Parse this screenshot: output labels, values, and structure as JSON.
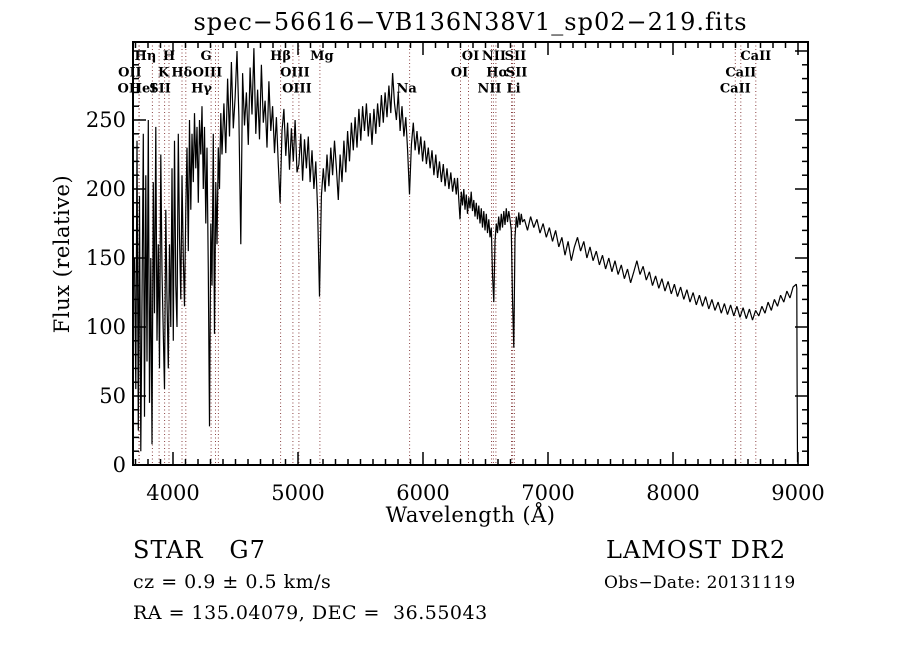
{
  "title": "spec−56616−VB136N38V1_sp02−219.fits",
  "axes": {
    "xlabel": "Wavelength (Å)",
    "ylabel": "Flux (relative)"
  },
  "footer": {
    "class_line": "STAR   G7",
    "cz_line": "cz = 0.9 ± 0.5 km/s",
    "radec_line": "RA = 135.04079, DEC =  36.55043",
    "survey": "LAMOST DR2",
    "obsdate": "Obs−Date: 20131119"
  },
  "colors": {
    "curve": "#000000",
    "frame": "#000000",
    "marker_line": "#8b4343"
  },
  "chart_data": {
    "type": "line",
    "title": "spec−56616−VB136N38V1_sp02−219.fits",
    "xlabel": "Wavelength (Å)",
    "ylabel": "Flux (relative)",
    "xlim": [
      3680,
      9080
    ],
    "ylim": [
      0,
      306.5
    ],
    "x_major_ticks": [
      4000,
      5000,
      6000,
      7000,
      8000,
      9000
    ],
    "y_major_ticks": [
      0,
      50,
      100,
      150,
      200,
      250,
      300
    ],
    "y_labeled_ticks": [
      0,
      50,
      100,
      150,
      200,
      250
    ],
    "x_minor_step": 100,
    "y_minor_step": 10,
    "grid": false,
    "legend": "none",
    "spectral_lines": [
      {
        "label": "OII",
        "wl": 3727,
        "row": 2,
        "dx": -9
      },
      {
        "label": "OII",
        "wl": 3730,
        "row": 3,
        "dx": -10
      },
      {
        "label": "Hη",
        "wl": 3835,
        "row": 1,
        "dx": -7
      },
      {
        "label": "HeI",
        "wl": 3889,
        "row": 3,
        "dx": -16
      },
      {
        "label": "K",
        "wl": 3933,
        "row": 2,
        "dx": -1
      },
      {
        "label": "H",
        "wl": 3968,
        "row": 1,
        "dx": 0
      },
      {
        "label": "SII",
        "wl": 4072,
        "row": 3,
        "dx": -22
      },
      {
        "label": "Hδ",
        "wl": 4102,
        "row": 2,
        "dx": -4
      },
      {
        "label": "G",
        "wl": 4305,
        "row": 1,
        "dx": -5
      },
      {
        "label": "Hγ",
        "wl": 4340,
        "row": 3,
        "dx": -14
      },
      {
        "label": "OIII",
        "wl": 4363,
        "row": 2,
        "dx": -11
      },
      {
        "label": "Hβ",
        "wl": 4861,
        "row": 1,
        "dx": 0
      },
      {
        "label": "OIII",
        "wl": 4959,
        "row": 2,
        "dx": 2
      },
      {
        "label": "OIII",
        "wl": 5007,
        "row": 3,
        "dx": -2
      },
      {
        "label": "Mg",
        "wl": 5175,
        "row": 1,
        "dx": 2
      },
      {
        "label": "Na",
        "wl": 5893,
        "row": 3,
        "dx": -3
      },
      {
        "label": "OI",
        "wl": 6300,
        "row": 2,
        "dx": -1
      },
      {
        "label": "OI",
        "wl": 6364,
        "row": 1,
        "dx": 2
      },
      {
        "label": "NII",
        "wl": 6548,
        "row": 3,
        "dx": -2
      },
      {
        "label": "Hα",
        "wl": 6563,
        "row": 2,
        "dx": 4
      },
      {
        "label": "NII",
        "wl": 6583,
        "row": 1,
        "dx": -2
      },
      {
        "label": "Li",
        "wl": 6708,
        "row": 3,
        "dx": 2
      },
      {
        "label": "SII",
        "wl": 6717,
        "row": 2,
        "dx": 4
      },
      {
        "label": "SII",
        "wl": 6731,
        "row": 1,
        "dx": 1
      },
      {
        "label": "CaII",
        "wl": 8498,
        "row": 3,
        "dx": 0
      },
      {
        "label": "CaII",
        "wl": 8542,
        "row": 2,
        "dx": 0
      },
      {
        "label": "CaII",
        "wl": 8662,
        "row": 1,
        "dx": 0
      }
    ],
    "series": [
      {
        "name": "flux",
        "segments": [
          {
            "start": 3692,
            "step": 10,
            "flux": [
              150,
              55,
              235,
              25,
              195,
              10,
              120,
              240,
              35,
              210,
              75,
              250,
              45,
              150,
              15,
              205,
              110,
              245,
              90,
              160,
              70,
              225,
              140,
              95,
              55,
              185,
              120,
              70,
              160,
              100,
              215,
              90,
              235,
              130,
              100,
              240,
              165,
              120,
              210,
              150,
              115,
              185,
              230,
              155,
              250,
              185,
              240,
              205,
              255,
              215,
              245,
              190,
              250,
              225,
              260,
              200,
              245,
              175,
              230,
              140,
              28,
              175,
              130,
              240,
              95,
              205,
              160,
              230,
              200,
              255,
              225
            ]
          },
          {
            "start": 4407,
            "step": 15,
            "flux": [
              262,
              226,
              280,
              238,
              292,
              244,
              266,
              300,
              252,
              160,
              284,
              246,
              270,
              232,
              288,
              254,
              302,
              240,
              272,
              236,
              290,
              248,
              264,
              230,
              278,
              242,
              260,
              226,
              252,
              218,
              190,
              242,
              258,
              224,
              248,
              214,
              244,
              220,
              250,
              212,
              218,
              240,
              206,
              236,
              215,
              238,
              205,
              228,
              200,
              220,
              185,
              122,
              195,
              215,
              198,
              225,
              202,
              230,
              210,
              235
            ]
          },
          {
            "start": 5307,
            "step": 15,
            "flux": [
              215,
              192,
              225,
              205,
              235,
              212,
              242,
              220,
              248,
              228,
              252,
              230,
              258,
              235,
              260,
              242,
              262,
              238,
              255,
              232,
              258,
              240,
              262,
              245,
              268,
              248,
              270,
              252,
              275,
              255,
              284,
              262,
              250,
              270,
              242,
              260,
              238,
              252,
              228,
              196,
              232,
              248,
              228,
              242,
              225,
              238,
              220,
              235,
              218,
              230,
              215,
              228,
              210,
              225,
              208,
              220,
              205,
              218,
              202,
              215,
              200,
              212,
              198,
              208
            ]
          },
          {
            "start": 6266,
            "step": 10,
            "flux": [
              196,
              208,
              192,
              178,
              198,
              188,
              200,
              185,
              196,
              182,
              194,
              186,
              198,
              184,
              192,
              180,
              190,
              178,
              188,
              175,
              186,
              172,
              184,
              170,
              182,
              168,
              178,
              165,
              172,
              138,
              118,
              162,
              175,
              168,
              180,
              170,
              182,
              172,
              184,
              174,
              186,
              176,
              184,
              178,
              170,
              120,
              85,
              165,
              180,
              172,
              183,
              174,
              182,
              176
            ]
          },
          {
            "start": 6811,
            "step": 25,
            "flux": [
              178,
              170,
              180,
              172,
              178,
              168,
              175,
              165,
              172,
              162,
              170,
              158,
              165,
              152,
              162,
              148,
              158,
              165,
              155,
              162,
              150,
              158,
              148,
              155,
              145,
              152,
              142,
              150,
              140,
              148,
              138,
              145,
              135,
              142,
              132,
              140,
              148,
              138,
              144,
              134,
              140,
              130,
              137,
              128,
              135,
              126,
              133,
              124,
              131,
              122,
              129,
              120,
              127,
              118,
              125,
              116,
              123,
              115,
              122,
              113,
              120,
              112,
              118,
              110,
              117,
              109,
              116,
              108,
              115,
              107,
              114,
              106,
              113,
              105,
              112,
              108,
              115,
              110,
              118,
              112,
              120,
              115,
              123,
              118,
              126,
              121,
              129,
              131
            ]
          },
          {
            "start": 8990,
            "step": 3,
            "flux": [
              128,
              60,
              2
            ]
          }
        ]
      }
    ]
  }
}
